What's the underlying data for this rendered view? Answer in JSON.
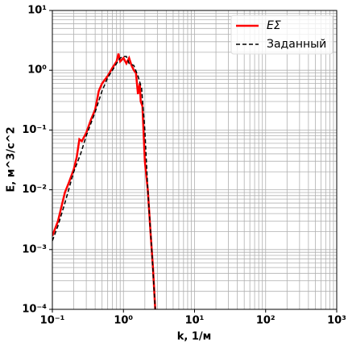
{
  "chart_data": {
    "type": "line",
    "xlabel": "k, 1/м",
    "ylabel": "E, м^3/с^2",
    "xscale": "log",
    "yscale": "log",
    "grid": "both",
    "legend": "upper right",
    "xlim": [
      0.1,
      1000
    ],
    "ylim": [
      0.0001,
      10
    ],
    "xticks": [
      {
        "value": 0.1,
        "label": "10⁻¹"
      },
      {
        "value": 1,
        "label": "10⁰"
      },
      {
        "value": 10,
        "label": "10¹"
      },
      {
        "value": 100,
        "label": "10²"
      },
      {
        "value": 1000,
        "label": "10³"
      }
    ],
    "yticks": [
      {
        "value": 0.0001,
        "label": "10⁻⁴"
      },
      {
        "value": 0.001,
        "label": "10⁻³"
      },
      {
        "value": 0.01,
        "label": "10⁻²"
      },
      {
        "value": 0.1,
        "label": "10⁻¹"
      },
      {
        "value": 1,
        "label": "10⁰"
      },
      {
        "value": 10,
        "label": "10¹"
      }
    ],
    "series": [
      {
        "name": "EΣ",
        "color": "#ff0000",
        "dash": false,
        "x": [
          0.1,
          0.12,
          0.15,
          0.17,
          0.2,
          0.22,
          0.24,
          0.26,
          0.3,
          0.35,
          0.4,
          0.45,
          0.5,
          0.6,
          0.7,
          0.8,
          0.85,
          0.9,
          1.0,
          1.1,
          1.2,
          1.3,
          1.4,
          1.5,
          1.6,
          1.7,
          1.75,
          1.85,
          2.0,
          2.2,
          2.4,
          2.6,
          2.8
        ],
        "values": [
          0.0017,
          0.003,
          0.009,
          0.013,
          0.022,
          0.035,
          0.07,
          0.065,
          0.09,
          0.15,
          0.22,
          0.45,
          0.6,
          0.8,
          1.1,
          1.4,
          1.9,
          1.4,
          1.6,
          1.3,
          1.6,
          1.2,
          1.0,
          0.9,
          0.4,
          0.6,
          0.3,
          0.25,
          0.03,
          0.01,
          0.002,
          0.0005,
          0.0001
        ]
      },
      {
        "name": "Заданный",
        "color": "#000000",
        "dash": true,
        "x": [
          0.1,
          0.12,
          0.15,
          0.2,
          0.25,
          0.3,
          0.4,
          0.5,
          0.6,
          0.7,
          0.8,
          0.9,
          1.0,
          1.1,
          1.2,
          1.4,
          1.6,
          1.8,
          2.0,
          2.2,
          2.5,
          2.8
        ],
        "values": [
          0.0014,
          0.0025,
          0.006,
          0.02,
          0.04,
          0.08,
          0.2,
          0.45,
          0.75,
          1.0,
          1.3,
          1.6,
          1.7,
          1.7,
          1.3,
          1.2,
          0.8,
          0.5,
          0.1,
          0.01,
          0.001,
          0.0001
        ]
      }
    ]
  }
}
